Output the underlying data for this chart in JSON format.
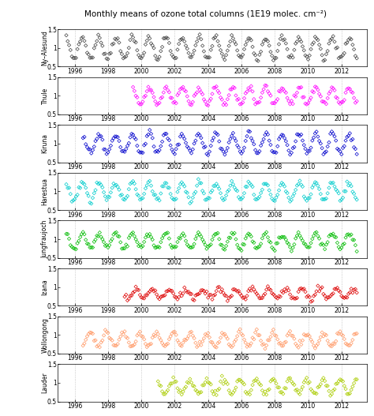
{
  "title": "Monthly means of ozone total columns (1E19 molec. cm⁻²)",
  "stations": [
    {
      "name": "Ny–Alesund",
      "color": "#404040",
      "start_year": 1995.5,
      "end_year": 2013.0,
      "ylim": [
        0.5,
        1.5
      ],
      "yticks": [
        0.5,
        1.0,
        1.5
      ],
      "amplitude": 0.28,
      "mean": 1.0,
      "phase": 2.5
    },
    {
      "name": "Thule",
      "color": "#ff00ff",
      "start_year": 1999.5,
      "end_year": 2013.0,
      "ylim": [
        0.5,
        1.5
      ],
      "yticks": [
        0.5,
        1.0,
        1.5
      ],
      "amplitude": 0.22,
      "mean": 1.0,
      "phase": 2.5
    },
    {
      "name": "Kiruna",
      "color": "#0000cc",
      "start_year": 1996.5,
      "end_year": 2013.0,
      "ylim": [
        0.5,
        1.5
      ],
      "yticks": [
        0.5,
        1.0,
        1.5
      ],
      "amplitude": 0.25,
      "mean": 1.0,
      "phase": 2.5
    },
    {
      "name": "Harestua",
      "color": "#00cccc",
      "start_year": 1995.5,
      "end_year": 2013.0,
      "ylim": [
        0.5,
        1.5
      ],
      "yticks": [
        0.5,
        1.0,
        1.5
      ],
      "amplitude": 0.23,
      "mean": 1.0,
      "phase": 2.5
    },
    {
      "name": "Jungfraujoch",
      "color": "#00bb00",
      "start_year": 1995.5,
      "end_year": 2013.0,
      "ylim": [
        0.5,
        1.5
      ],
      "yticks": [
        0.5,
        1.0,
        1.5
      ],
      "amplitude": 0.2,
      "mean": 0.95,
      "phase": 2.5
    },
    {
      "name": "Izana",
      "color": "#dd0000",
      "start_year": 1999.0,
      "end_year": 2013.0,
      "ylim": [
        0.5,
        1.5
      ],
      "yticks": [
        0.5,
        1.0,
        1.5
      ],
      "amplitude": 0.12,
      "mean": 0.82,
      "phase": 5.0
    },
    {
      "name": "Wollongong",
      "color": "#ff9966",
      "start_year": 1996.5,
      "end_year": 2013.0,
      "ylim": [
        0.5,
        1.5
      ],
      "yticks": [
        0.5,
        1.0,
        1.5
      ],
      "amplitude": 0.18,
      "mean": 0.88,
      "phase": 8.0
    },
    {
      "name": "Lauder",
      "color": "#aacc00",
      "start_year": 2001.0,
      "end_year": 2013.0,
      "ylim": [
        0.5,
        1.5
      ],
      "yticks": [
        0.5,
        1.0,
        1.5
      ],
      "amplitude": 0.18,
      "mean": 0.9,
      "phase": 8.0
    }
  ],
  "xlim": [
    1995.0,
    2013.5
  ],
  "xticks": [
    1996,
    1998,
    2000,
    2002,
    2004,
    2006,
    2008,
    2010,
    2012
  ],
  "background_color": "#ffffff",
  "marker": "D",
  "markersize": 2.2,
  "marker_lw": 0.5,
  "grid_color": "#bbbbbb",
  "grid_style": ":",
  "title_fontsize": 7.5,
  "label_fontsize": 5.5,
  "tick_fontsize": 5.5
}
